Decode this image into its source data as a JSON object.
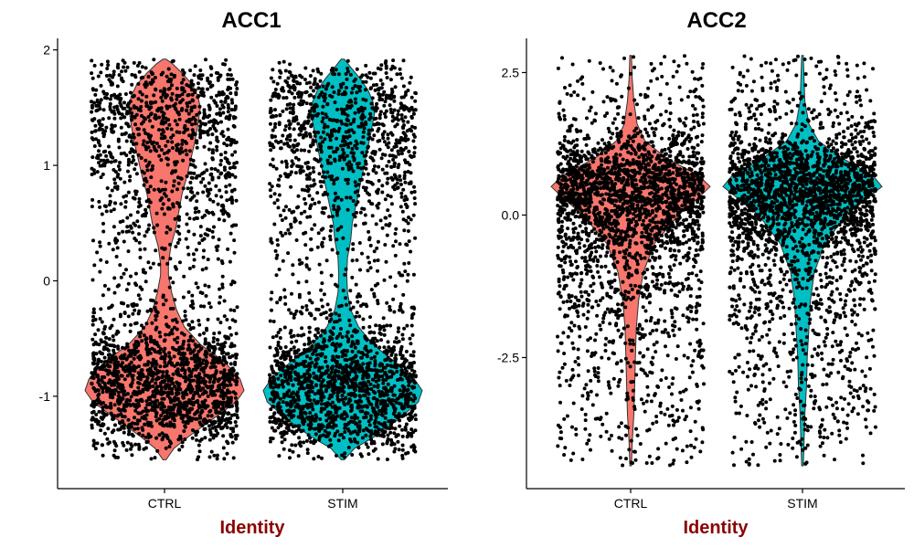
{
  "colors": {
    "CTRL": "#F8766D",
    "STIM": "#00BFC4",
    "axis_title": "#8B0000",
    "points": "#000000"
  },
  "chart_data": [
    {
      "type": "violin",
      "title": "ACC1",
      "xlabel": "Identity",
      "ylabel": "",
      "categories": [
        "CTRL",
        "STIM"
      ],
      "ylim": [
        -1.8,
        2.1
      ],
      "yticks": [
        -1,
        0,
        1,
        2
      ],
      "ytick_labels": [
        "-1",
        "0",
        "1",
        "2"
      ],
      "points_overlay": true,
      "series": [
        {
          "category": "CTRL",
          "range": [
            -1.55,
            1.92
          ],
          "density": [
            [
              -1.55,
              0.02
            ],
            [
              -1.45,
              0.12
            ],
            [
              -1.35,
              0.3
            ],
            [
              -1.2,
              0.6
            ],
            [
              -1.05,
              0.9
            ],
            [
              -0.95,
              1.0
            ],
            [
              -0.85,
              0.95
            ],
            [
              -0.7,
              0.75
            ],
            [
              -0.55,
              0.45
            ],
            [
              -0.4,
              0.25
            ],
            [
              -0.25,
              0.15
            ],
            [
              -0.1,
              0.09
            ],
            [
              0.05,
              0.05
            ],
            [
              0.15,
              0.05
            ],
            [
              0.3,
              0.08
            ],
            [
              0.45,
              0.14
            ],
            [
              0.6,
              0.18
            ],
            [
              0.75,
              0.22
            ],
            [
              0.9,
              0.28
            ],
            [
              1.05,
              0.33
            ],
            [
              1.2,
              0.38
            ],
            [
              1.35,
              0.42
            ],
            [
              1.5,
              0.45
            ],
            [
              1.6,
              0.42
            ],
            [
              1.7,
              0.35
            ],
            [
              1.8,
              0.22
            ],
            [
              1.88,
              0.1
            ],
            [
              1.92,
              0.02
            ]
          ]
        },
        {
          "category": "STIM",
          "range": [
            -1.55,
            1.92
          ],
          "density": [
            [
              -1.55,
              0.02
            ],
            [
              -1.45,
              0.15
            ],
            [
              -1.35,
              0.4
            ],
            [
              -1.2,
              0.7
            ],
            [
              -1.05,
              0.95
            ],
            [
              -0.95,
              1.0
            ],
            [
              -0.85,
              0.9
            ],
            [
              -0.7,
              0.65
            ],
            [
              -0.55,
              0.38
            ],
            [
              -0.4,
              0.2
            ],
            [
              -0.25,
              0.1
            ],
            [
              -0.1,
              0.06
            ],
            [
              0.05,
              0.05
            ],
            [
              0.2,
              0.06
            ],
            [
              0.35,
              0.1
            ],
            [
              0.5,
              0.12
            ],
            [
              0.7,
              0.18
            ],
            [
              0.9,
              0.24
            ],
            [
              1.1,
              0.3
            ],
            [
              1.3,
              0.36
            ],
            [
              1.45,
              0.4
            ],
            [
              1.55,
              0.38
            ],
            [
              1.65,
              0.32
            ],
            [
              1.75,
              0.22
            ],
            [
              1.85,
              0.1
            ],
            [
              1.92,
              0.02
            ]
          ]
        }
      ]
    },
    {
      "type": "violin",
      "title": "ACC2",
      "xlabel": "Identity",
      "ylabel": "",
      "categories": [
        "CTRL",
        "STIM"
      ],
      "ylim": [
        -4.8,
        3.1
      ],
      "yticks": [
        -2.5,
        0.0,
        2.5
      ],
      "ytick_labels": [
        "-2.5",
        "0.0",
        "2.5"
      ],
      "points_overlay": true,
      "series": [
        {
          "category": "CTRL",
          "range": [
            -4.4,
            2.8
          ],
          "density": [
            [
              -4.4,
              0.01
            ],
            [
              -4.0,
              0.02
            ],
            [
              -3.5,
              0.04
            ],
            [
              -3.0,
              0.05
            ],
            [
              -2.5,
              0.06
            ],
            [
              -2.0,
              0.07
            ],
            [
              -1.5,
              0.1
            ],
            [
              -1.0,
              0.16
            ],
            [
              -0.5,
              0.3
            ],
            [
              0.0,
              0.6
            ],
            [
              0.3,
              0.85
            ],
            [
              0.5,
              1.0
            ],
            [
              0.7,
              0.85
            ],
            [
              1.0,
              0.45
            ],
            [
              1.3,
              0.18
            ],
            [
              1.6,
              0.08
            ],
            [
              2.0,
              0.04
            ],
            [
              2.4,
              0.02
            ],
            [
              2.8,
              0.01
            ]
          ]
        },
        {
          "category": "STIM",
          "range": [
            -4.4,
            2.8
          ],
          "density": [
            [
              -4.4,
              0.01
            ],
            [
              -4.0,
              0.02
            ],
            [
              -3.5,
              0.03
            ],
            [
              -3.0,
              0.05
            ],
            [
              -2.5,
              0.06
            ],
            [
              -2.0,
              0.08
            ],
            [
              -1.5,
              0.1
            ],
            [
              -1.0,
              0.15
            ],
            [
              -0.5,
              0.28
            ],
            [
              0.0,
              0.55
            ],
            [
              0.3,
              0.82
            ],
            [
              0.5,
              1.0
            ],
            [
              0.7,
              0.88
            ],
            [
              1.0,
              0.5
            ],
            [
              1.3,
              0.2
            ],
            [
              1.6,
              0.08
            ],
            [
              2.0,
              0.03
            ],
            [
              2.4,
              0.02
            ],
            [
              2.8,
              0.01
            ]
          ]
        }
      ]
    }
  ]
}
